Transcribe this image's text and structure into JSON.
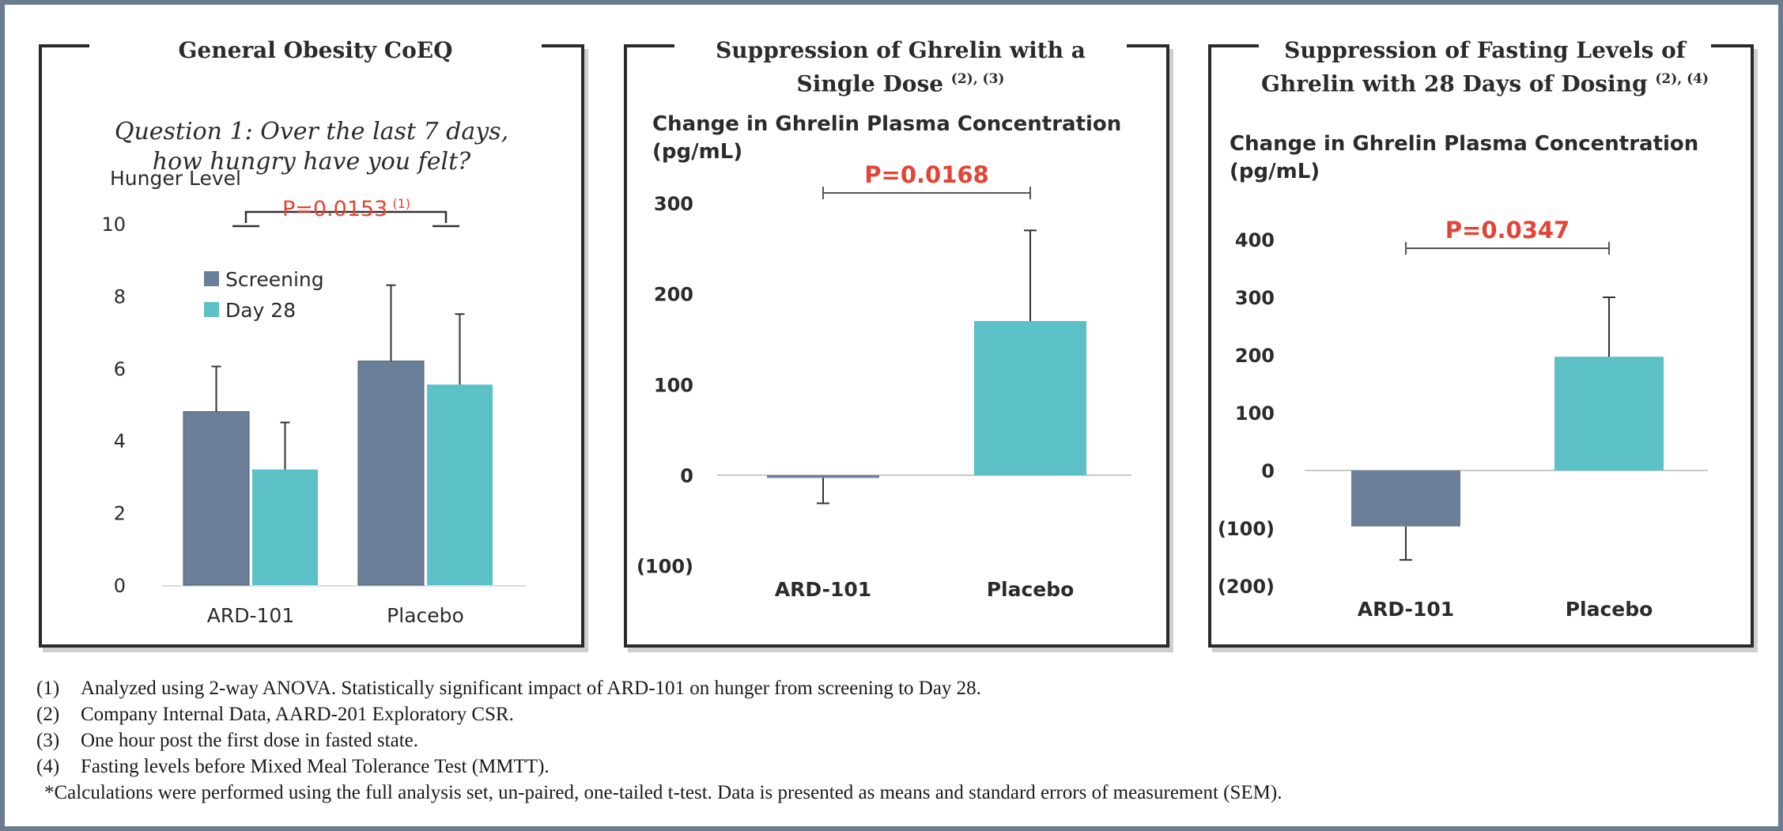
{
  "colors": {
    "screening": "#6b7f99",
    "day28": "#5bc1c7",
    "pvalue": "#e44436",
    "border": "#2a2a2a"
  },
  "panels": [
    {
      "title": "General Obesity CoEQ",
      "title_sup": "",
      "title_line2": "",
      "question": [
        "Question 1: Over the last 7 days,",
        "how hungry have you felt?"
      ],
      "ylabel": "Hunger Level",
      "ylabel2": "",
      "pvalue": "P=0.0153",
      "pvalue_sup": "(1)"
    },
    {
      "title": "Suppression of Ghrelin with a",
      "title_line2": "Single Dose",
      "title_sup": "(2), (3)",
      "ylabel": "Change in Ghrelin Plasma Concentration",
      "ylabel2": "(pg/mL)",
      "pvalue": "P=0.0168",
      "pvalue_sup": ""
    },
    {
      "title": "Suppression of Fasting Levels of",
      "title_line2": "Ghrelin with 28 Days of Dosing",
      "title_sup": "(2), (4)",
      "ylabel": "Change in Ghrelin Plasma Concentration",
      "ylabel2": "(pg/mL)",
      "pvalue": "P=0.0347",
      "pvalue_sup": ""
    }
  ],
  "chart_data": [
    {
      "type": "bar",
      "title": "General Obesity CoEQ",
      "subtitle": "Question 1: Over the last 7 days, how hungry have you felt?",
      "ylabel": "Hunger Level",
      "categories": [
        "ARD-101",
        "Placebo"
      ],
      "series": [
        {
          "name": "Screening",
          "values": [
            4.8,
            6.2
          ],
          "errors": [
            1.25,
            2.1
          ],
          "color": "#6b7f99"
        },
        {
          "name": "Day 28",
          "values": [
            3.2,
            5.55
          ],
          "errors": [
            1.3,
            1.95
          ],
          "color": "#5bc1c7"
        }
      ],
      "ylim": [
        0,
        10
      ],
      "yticks": [
        "0",
        "2",
        "4",
        "6",
        "8",
        "10"
      ],
      "annotation": "P=0.0153 (1)",
      "legend": "top-left"
    },
    {
      "type": "bar",
      "title": "Suppression of Ghrelin with a Single Dose (2), (3)",
      "ylabel": "Change in Ghrelin Plasma Concentration (pg/mL)",
      "categories": [
        "ARD-101",
        "Placebo"
      ],
      "values": [
        -3,
        170
      ],
      "errors": [
        28,
        100
      ],
      "colors": [
        "#6b7f99",
        "#5bc1c7"
      ],
      "ylim": [
        -100,
        300
      ],
      "yticks": [
        "(100)",
        "0",
        "100",
        "200",
        "300"
      ],
      "annotation": "P=0.0168"
    },
    {
      "type": "bar",
      "title": "Suppression of Fasting Levels of Ghrelin with 28 Days of Dosing (2), (4)",
      "ylabel": "Change in Ghrelin Plasma Concentration (pg/mL)",
      "categories": [
        "ARD-101",
        "Placebo"
      ],
      "values": [
        -97,
        197
      ],
      "errors": [
        58,
        103
      ],
      "colors": [
        "#6b7f99",
        "#5bc1c7"
      ],
      "ylim": [
        -200,
        400
      ],
      "yticks": [
        "(200)",
        "(100)",
        "0",
        "100",
        "200",
        "300",
        "400"
      ],
      "annotation": "P=0.0347"
    }
  ],
  "footnotes": [
    {
      "num": "(1)",
      "text": "Analyzed using 2-way ANOVA. Statistically significant impact of ARD-101 on hunger from screening to Day 28."
    },
    {
      "num": "(2)",
      "text": "Company Internal Data, AARD-201 Exploratory CSR."
    },
    {
      "num": "(3)",
      "text": "One hour post the first dose in fasted state."
    },
    {
      "num": "(4)",
      "text": "Fasting levels before Mixed Meal Tolerance Test (MMTT)."
    }
  ],
  "footnote_note": "*Calculations were performed using the full analysis set, un-paired, one-tailed t-test. Data is presented as means and standard errors of measurement (SEM)."
}
